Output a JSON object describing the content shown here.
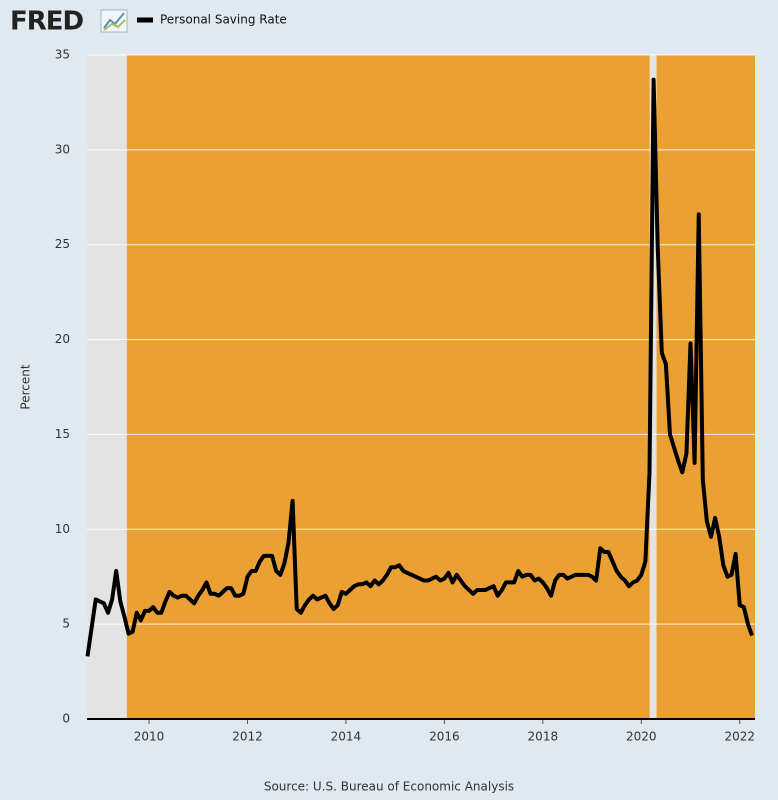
{
  "logo": "FRED",
  "chart_data": {
    "type": "line",
    "y_label": "Percent",
    "source": "Source: U.S. Bureau of Economic Analysis",
    "plot_background": "#eba034",
    "recession_color": "#e3e3e3",
    "recessions": [
      [
        2007.92,
        2009.55
      ],
      [
        2020.17,
        2020.31
      ]
    ],
    "grid": true,
    "xlim": [
      2008.74,
      2022.31
    ],
    "xticks": [
      2010,
      2012,
      2014,
      2016,
      2018,
      2020,
      2022
    ],
    "ylim": [
      0,
      35
    ],
    "yticks": [
      0,
      5,
      10,
      15,
      20,
      25,
      30,
      35
    ],
    "x": [
      2008.75,
      2008.833,
      2008.917,
      2009,
      2009.083,
      2009.167,
      2009.25,
      2009.333,
      2009.417,
      2009.5,
      2009.583,
      2009.667,
      2009.75,
      2009.833,
      2009.917,
      2010,
      2010.083,
      2010.167,
      2010.25,
      2010.333,
      2010.417,
      2010.5,
      2010.583,
      2010.667,
      2010.75,
      2010.833,
      2010.917,
      2011,
      2011.083,
      2011.167,
      2011.25,
      2011.333,
      2011.417,
      2011.5,
      2011.583,
      2011.667,
      2011.75,
      2011.833,
      2011.917,
      2012,
      2012.083,
      2012.167,
      2012.25,
      2012.333,
      2012.417,
      2012.5,
      2012.583,
      2012.667,
      2012.75,
      2012.833,
      2012.917,
      2013,
      2013.083,
      2013.167,
      2013.25,
      2013.333,
      2013.417,
      2013.5,
      2013.583,
      2013.667,
      2013.75,
      2013.833,
      2013.917,
      2014,
      2014.083,
      2014.167,
      2014.25,
      2014.333,
      2014.417,
      2014.5,
      2014.583,
      2014.667,
      2014.75,
      2014.833,
      2014.917,
      2015,
      2015.083,
      2015.167,
      2015.25,
      2015.333,
      2015.417,
      2015.5,
      2015.583,
      2015.667,
      2015.75,
      2015.833,
      2015.917,
      2016,
      2016.083,
      2016.167,
      2016.25,
      2016.333,
      2016.417,
      2016.5,
      2016.583,
      2016.667,
      2016.75,
      2016.833,
      2016.917,
      2017,
      2017.083,
      2017.167,
      2017.25,
      2017.333,
      2017.417,
      2017.5,
      2017.583,
      2017.667,
      2017.75,
      2017.833,
      2017.917,
      2018,
      2018.083,
      2018.167,
      2018.25,
      2018.333,
      2018.417,
      2018.5,
      2018.583,
      2018.667,
      2018.75,
      2018.833,
      2018.917,
      2019,
      2019.083,
      2019.167,
      2019.25,
      2019.333,
      2019.417,
      2019.5,
      2019.583,
      2019.667,
      2019.75,
      2019.833,
      2019.917,
      2020,
      2020.083,
      2020.167,
      2020.25,
      2020.333,
      2020.417,
      2020.5,
      2020.583,
      2020.667,
      2020.75,
      2020.833,
      2020.917,
      2021,
      2021.083,
      2021.167,
      2021.25,
      2021.333,
      2021.417,
      2021.5,
      2021.583,
      2021.667,
      2021.75,
      2021.833,
      2021.917,
      2022,
      2022.083,
      2022.167,
      2022.25
    ],
    "series": [
      {
        "name": "Personal Saving Rate",
        "color": "#000000",
        "values": [
          3.3,
          4.8,
          6.3,
          6.2,
          6.1,
          5.6,
          6.3,
          7.8,
          6.2,
          5.4,
          4.5,
          4.6,
          5.6,
          5.2,
          5.7,
          5.7,
          5.9,
          5.6,
          5.6,
          6.2,
          6.7,
          6.5,
          6.4,
          6.5,
          6.5,
          6.3,
          6.1,
          6.5,
          6.8,
          7.2,
          6.6,
          6.6,
          6.5,
          6.7,
          6.9,
          6.9,
          6.5,
          6.5,
          6.6,
          7.5,
          7.8,
          7.8,
          8.3,
          8.6,
          8.6,
          8.6,
          7.8,
          7.6,
          8.2,
          9.3,
          11.5,
          5.8,
          5.6,
          6.0,
          6.3,
          6.5,
          6.3,
          6.4,
          6.5,
          6.1,
          5.8,
          6.0,
          6.7,
          6.6,
          6.8,
          7.0,
          7.1,
          7.1,
          7.2,
          7.0,
          7.3,
          7.1,
          7.3,
          7.6,
          8.0,
          8.0,
          8.1,
          7.8,
          7.7,
          7.6,
          7.5,
          7.4,
          7.3,
          7.3,
          7.4,
          7.5,
          7.3,
          7.4,
          7.7,
          7.2,
          7.6,
          7.3,
          7.0,
          6.8,
          6.6,
          6.8,
          6.8,
          6.8,
          6.9,
          7.0,
          6.5,
          6.8,
          7.2,
          7.2,
          7.2,
          7.8,
          7.5,
          7.6,
          7.6,
          7.3,
          7.4,
          7.2,
          6.9,
          6.5,
          7.3,
          7.6,
          7.6,
          7.4,
          7.5,
          7.6,
          7.6,
          7.6,
          7.6,
          7.5,
          7.3,
          9.0,
          8.8,
          8.8,
          8.3,
          7.8,
          7.5,
          7.3,
          7.0,
          7.2,
          7.3,
          7.6,
          8.3,
          13.0,
          33.7,
          24.9,
          19.3,
          18.7,
          15.0,
          14.3,
          13.6,
          13.0,
          14.0,
          19.8,
          13.5,
          26.6,
          12.6,
          10.4,
          9.6,
          10.6,
          9.6,
          8.1,
          7.5,
          7.6,
          8.7,
          6.0,
          5.9,
          5.0,
          4.4
        ]
      }
    ]
  }
}
